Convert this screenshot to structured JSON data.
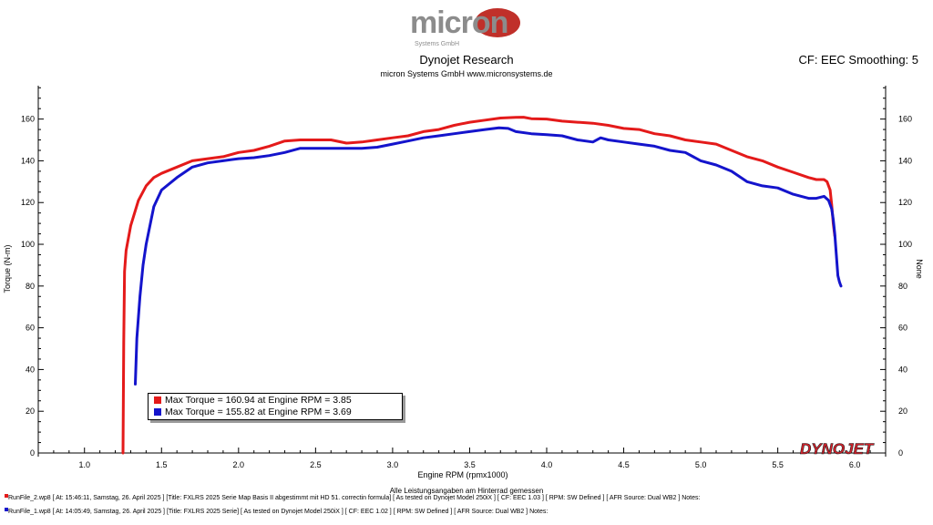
{
  "header": {
    "logo_text": "micron",
    "logo_subtext": "Systems GmbH",
    "title": "Dynojet Research",
    "subtitle": "micron Systems GmbH  www.micronsystems.de",
    "cf_label": "CF: EEC Smoothing: 5"
  },
  "colors": {
    "red": "#e41a1a",
    "blue": "#1414cc",
    "logo_grey": "#8c8c8c",
    "logo_red": "#c0302a"
  },
  "chart_data": {
    "type": "line",
    "xlabel": "Engine RPM (rpmx1000)",
    "ylabel": "Torque (N-m)",
    "ylabel_right": "None",
    "xlim": [
      0.7,
      6.2
    ],
    "ylim": [
      0,
      176
    ],
    "x_ticks": [
      "1.0",
      "1.5",
      "2.0",
      "2.5",
      "3.0",
      "3.5",
      "4.0",
      "4.5",
      "5.0",
      "5.5",
      "6.0"
    ],
    "y_ticks": [
      "0",
      "20",
      "40",
      "60",
      "80",
      "100",
      "120",
      "140",
      "160"
    ],
    "grid": false,
    "legend_position": "bottom-left",
    "brand_watermark": "DYNOJET",
    "series": [
      {
        "color": "#e41a1a",
        "x": [
          1.25,
          1.255,
          1.26,
          1.27,
          1.3,
          1.35,
          1.4,
          1.45,
          1.5,
          1.6,
          1.7,
          1.8,
          1.9,
          2.0,
          2.1,
          2.2,
          2.3,
          2.4,
          2.5,
          2.6,
          2.7,
          2.8,
          2.9,
          3.0,
          3.1,
          3.2,
          3.3,
          3.4,
          3.5,
          3.6,
          3.7,
          3.8,
          3.85,
          3.9,
          4.0,
          4.1,
          4.2,
          4.3,
          4.4,
          4.5,
          4.6,
          4.7,
          4.8,
          4.9,
          5.0,
          5.1,
          5.2,
          5.3,
          5.4,
          5.5,
          5.6,
          5.7,
          5.75,
          5.8,
          5.82,
          5.84,
          5.85,
          5.86,
          5.87
        ],
        "y": [
          0,
          53,
          87,
          97,
          109,
          121,
          128,
          132,
          134,
          137,
          140,
          141,
          142,
          144,
          145,
          147,
          149.5,
          150,
          150,
          150,
          148.5,
          149,
          150,
          151,
          152,
          154,
          155,
          157,
          158.5,
          159.5,
          160.5,
          160.8,
          160.9,
          160.2,
          160,
          159,
          158.5,
          158,
          157,
          155.5,
          155,
          153,
          152,
          150,
          149,
          148,
          145,
          142,
          140,
          137,
          134.5,
          132,
          131,
          131,
          130,
          126,
          119,
          110,
          104
        ]
      },
      {
        "color": "#1414cc",
        "x": [
          1.33,
          1.34,
          1.36,
          1.38,
          1.4,
          1.45,
          1.5,
          1.6,
          1.7,
          1.8,
          1.9,
          2.0,
          2.1,
          2.2,
          2.3,
          2.4,
          2.5,
          2.6,
          2.7,
          2.8,
          2.9,
          3.0,
          3.1,
          3.2,
          3.3,
          3.4,
          3.5,
          3.6,
          3.69,
          3.75,
          3.8,
          3.9,
          4.0,
          4.1,
          4.2,
          4.3,
          4.35,
          4.4,
          4.5,
          4.6,
          4.7,
          4.8,
          4.9,
          5.0,
          5.1,
          5.2,
          5.3,
          5.4,
          5.5,
          5.6,
          5.7,
          5.75,
          5.8,
          5.83,
          5.85,
          5.86,
          5.87,
          5.88,
          5.89,
          5.9,
          5.905,
          5.91
        ],
        "y": [
          33,
          55,
          75,
          90,
          100,
          118,
          126,
          132,
          137,
          139,
          140,
          141,
          141.5,
          142.5,
          144,
          146,
          146,
          146,
          146,
          146,
          146.5,
          148,
          149.5,
          151,
          152,
          153,
          154,
          155,
          155.8,
          155.5,
          154,
          153,
          152.5,
          152,
          150,
          149,
          151,
          150,
          149,
          148,
          147,
          145,
          144,
          140,
          138,
          135,
          130,
          128,
          127,
          124,
          122,
          122,
          123,
          121,
          117,
          112,
          105,
          95,
          85,
          82,
          81,
          80
        ]
      }
    ]
  },
  "legend": [
    {
      "color": "#e41a1a",
      "text": "Max Torque = 160.94 at Engine RPM = 3.85"
    },
    {
      "color": "#1414cc",
      "text": "Max Torque = 155.82 at Engine RPM = 3.69"
    }
  ],
  "footer": {
    "note": "Alle Leistungsangaben am Hinterrad gemessen",
    "runs": [
      {
        "color": "#e41a1a",
        "text": "RunFile_2.wp8  [  At: 15:46:11, Samstag, 26. April 2025 ]  [Title:  FXLRS 2025 Serie Map Basis  II  abgestimmt  mit  HD 51. correctin formula]   [  As tested on Dynojet Model 250iX ]  [  CF:  EEC  1.03  ]  [  RPM:  SW Defined ]  [  AFR  Source:  Dual WB2 ]  Notes:"
      },
      {
        "color": "#1414cc",
        "text": "RunFile_1.wp8  [  At: 14:05:49, Samstag, 26. April 2025 ]  [Title:  FXLRS 2025 Serie]   [  As tested on Dynojet Model 250iX ]  [  CF:  EEC  1.02  ]  [  RPM:  SW Defined ]  [  AFR  Source:  Dual WB2 ]  Notes:"
      }
    ]
  }
}
